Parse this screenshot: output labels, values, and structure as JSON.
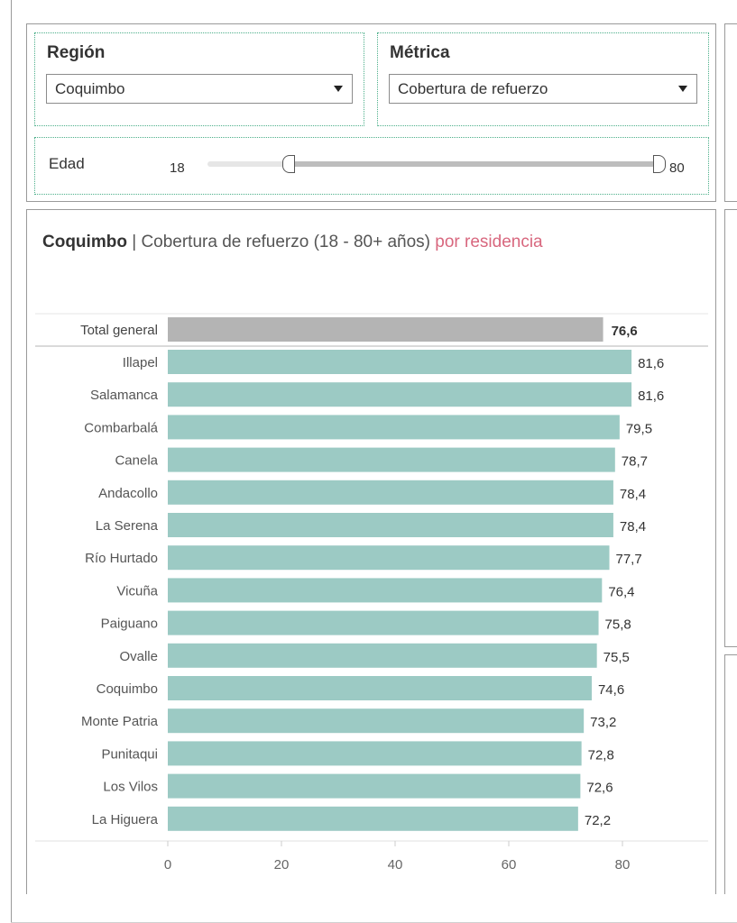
{
  "filters": {
    "region": {
      "label": "Región",
      "value": "Coquimbo"
    },
    "metric": {
      "label": "Métrica",
      "value": "Cobertura de refuerzo"
    },
    "age": {
      "label": "Edad",
      "min": "18",
      "max": "80",
      "range_low": 18,
      "range_high": 80
    }
  },
  "chart_title": {
    "region": "Coquimbo",
    "separator": "|",
    "metric": "Cobertura de refuerzo (18 - 80+ años)",
    "by": "por residencia"
  },
  "colors": {
    "bar": "#9ccac4",
    "total_bar": "#b4b4b4",
    "accent_text": "#d8677e"
  },
  "chart_data": {
    "type": "bar",
    "orientation": "horizontal",
    "total": {
      "label": "Total general",
      "value": 76.6,
      "display": "76,6"
    },
    "categories": [
      "Illapel",
      "Salamanca",
      "Combarbalá",
      "Canela",
      "Andacollo",
      "La Serena",
      "Río Hurtado",
      "Vicuña",
      "Paiguano",
      "Ovalle",
      "Coquimbo",
      "Monte Patria",
      "Punitaqui",
      "Los Vilos",
      "La Higuera"
    ],
    "values": [
      81.6,
      81.6,
      79.5,
      78.7,
      78.4,
      78.4,
      77.7,
      76.4,
      75.8,
      75.5,
      74.6,
      73.2,
      72.8,
      72.6,
      72.2
    ],
    "value_labels": [
      "81,6",
      "81,6",
      "79,5",
      "78,7",
      "78,4",
      "78,4",
      "77,7",
      "76,4",
      "75,8",
      "75,5",
      "74,6",
      "73,2",
      "72,8",
      "72,6",
      "72,2"
    ],
    "xlim": [
      0,
      95
    ],
    "xticks": [
      "0",
      "20",
      "40",
      "60",
      "80"
    ],
    "grid": false
  }
}
